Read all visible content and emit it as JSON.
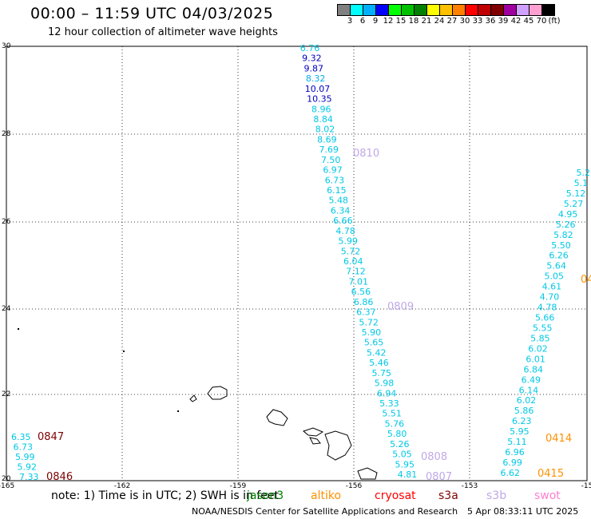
{
  "header": {
    "title": "00:00 – 11:59 UTC 04/03/2025",
    "subtitle": "12 hour collection of altimeter wave heights"
  },
  "colorbar": {
    "unit": "(ft)",
    "labels": [
      "3",
      "6",
      "9",
      "12",
      "15",
      "18",
      "21",
      "24",
      "27",
      "30",
      "33",
      "36",
      "39",
      "42",
      "45",
      "70"
    ],
    "colors": [
      "#808080",
      "#00ffff",
      "#00b0ff",
      "#0000ff",
      "#00ff00",
      "#00c000",
      "#008000",
      "#ffff00",
      "#ffc000",
      "#ff8000",
      "#ff0000",
      "#c00000",
      "#800000",
      "#a000a0",
      "#d0a0ff",
      "#ffa0d0",
      "#000000"
    ]
  },
  "map": {
    "x_ticks": [
      "-165",
      "-162",
      "-159",
      "-156",
      "-153",
      "-15"
    ],
    "y_ticks": [
      "30",
      "28",
      "26",
      "24",
      "22",
      "20"
    ],
    "lon_range": [
      -165,
      -150
    ],
    "lat_range": [
      20,
      30
    ]
  },
  "tracks": [
    {
      "name": "track-a",
      "labels": [
        "6.76",
        "9.32",
        "9.87",
        "8.32",
        "10.07",
        "10.35",
        "8.96",
        "8.84",
        "8.02",
        "8.69",
        "7.69",
        "7.50",
        "6.97",
        "6.73",
        "6.15",
        "5.48",
        "6.34",
        "6.66",
        "4.78",
        "5.99",
        "5.72",
        "6.04",
        "7.12",
        "7.01",
        "6.56",
        "6.86",
        "6.37",
        "5.72",
        "5.90",
        "5.65",
        "5.42",
        "5.46",
        "5.75",
        "5.98",
        "6.94",
        "5.33",
        "5.51",
        "5.76",
        "5.80",
        "5.26",
        "5.05",
        "5.95",
        "4.81"
      ],
      "colors": [
        "#00c8e6",
        "#0000c0",
        "#0000c0",
        "#00b0f0",
        "#0000c0",
        "#0000c0",
        "#00c8e6",
        "#00c8e6",
        "#00c8e6",
        "#00c8e6",
        "#00c8e6",
        "#00c8e6",
        "#00c8e6",
        "#00c8e6",
        "#00c8e6",
        "#00c8e6",
        "#00c8e6",
        "#00c8e6",
        "#00c8e6",
        "#00c8e6",
        "#00c8e6",
        "#00c8e6",
        "#00c8e6",
        "#00c8e6",
        "#00c8e6",
        "#00c8e6",
        "#00c8e6",
        "#00c8e6",
        "#00c8e6",
        "#00c8e6",
        "#00c8e6",
        "#00c8e6",
        "#00c8e6",
        "#00c8e6",
        "#00c8e6",
        "#00c8e6",
        "#00c8e6",
        "#00c8e6",
        "#00c8e6",
        "#00c8e6",
        "#00c8e6",
        "#00c8e6",
        "#00c8e6"
      ]
    },
    {
      "name": "track-b",
      "labels": [
        "5.2",
        "5.1",
        "5.12",
        "5.27",
        "4.95",
        "5.26",
        "5.82",
        "5.50",
        "6.26",
        "5.64",
        "5.05",
        "4.61",
        "4.70",
        "4.78",
        "5.66",
        "5.55",
        "5.85",
        "6.02",
        "6.01",
        "6.84",
        "6.49",
        "6.14",
        "6.02",
        "5.86",
        "6.23",
        "5.95",
        "5.11",
        "6.96",
        "6.99",
        "6.62"
      ]
    },
    {
      "name": "track-c",
      "labels": [
        "6.35",
        "6.73",
        "5.99",
        "5.92",
        "7.33"
      ]
    }
  ],
  "time_labels": [
    {
      "text": "0810",
      "color": "#c0a8e8"
    },
    {
      "text": "0809",
      "color": "#c0a8e8"
    },
    {
      "text": "0808",
      "color": "#c0a8e8"
    },
    {
      "text": "0807",
      "color": "#c0a8e8"
    },
    {
      "text": "0847",
      "color": "#800000"
    },
    {
      "text": "0846",
      "color": "#800000"
    },
    {
      "text": "0414",
      "color": "#ff9000"
    },
    {
      "text": "0415",
      "color": "#ff9000"
    },
    {
      "text": "04",
      "color": "#ff9000"
    }
  ],
  "footer": {
    "note": "note: 1) Time is in UTC; 2) SWH is in feet",
    "satellites": [
      {
        "name": "jason3",
        "color": "#008000"
      },
      {
        "name": "altiko",
        "color": "#ff9000"
      },
      {
        "name": "cryosat",
        "color": "#ff0000"
      },
      {
        "name": "s3a",
        "color": "#800000"
      },
      {
        "name": "s3b",
        "color": "#c0a8e8"
      },
      {
        "name": "swot",
        "color": "#ff80d0"
      }
    ],
    "credit": "NOAA/NESDIS Center for Satellite Applications and Research",
    "generated": "5 Apr 08:33:11 UTC 2025"
  }
}
